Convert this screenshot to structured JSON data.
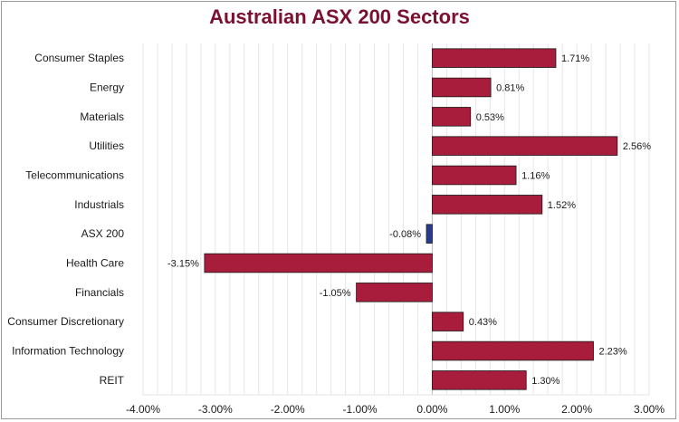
{
  "colors": {
    "title": "#7a1130",
    "bar_positive": "#a81c3c",
    "bar_negative": "#a81c3c",
    "bar_highlight": "#2a3a8c",
    "bar_outline": "#1a1a1a",
    "grid": "#e6e6e6",
    "axis": "#bfbfbf",
    "text": "#1a1a1a"
  },
  "chart_data": {
    "type": "bar",
    "orientation": "horizontal",
    "title": "Australian ASX 200 Sectors",
    "categories": [
      "Consumer Staples",
      "Energy",
      "Materials",
      "Utilities",
      "Telecommunications",
      "Industrials",
      "ASX 200",
      "Health Care",
      "Financials",
      "Consumer Discretionary",
      "Information Technology",
      "REIT"
    ],
    "values": [
      1.71,
      0.81,
      0.53,
      2.56,
      1.16,
      1.52,
      -0.08,
      -3.15,
      -1.05,
      0.43,
      2.23,
      1.3
    ],
    "data_labels": [
      "1.71%",
      "0.81%",
      "0.53%",
      "2.56%",
      "1.16%",
      "1.52%",
      "-0.08%",
      "-3.15%",
      "-1.05%",
      "0.43%",
      "2.23%",
      "1.30%"
    ],
    "highlight_category": "ASX 200",
    "xlim": [
      -4,
      3
    ],
    "x_ticks": [
      -4,
      -3,
      -2,
      -1,
      0,
      1,
      2,
      3
    ],
    "x_tick_labels": [
      "-4.00%",
      "-3.00%",
      "-2.00%",
      "-1.00%",
      "0.00%",
      "1.00%",
      "2.00%",
      "3.00%"
    ],
    "minor_grid_step": 0.2,
    "grid": true,
    "legend": "none"
  }
}
